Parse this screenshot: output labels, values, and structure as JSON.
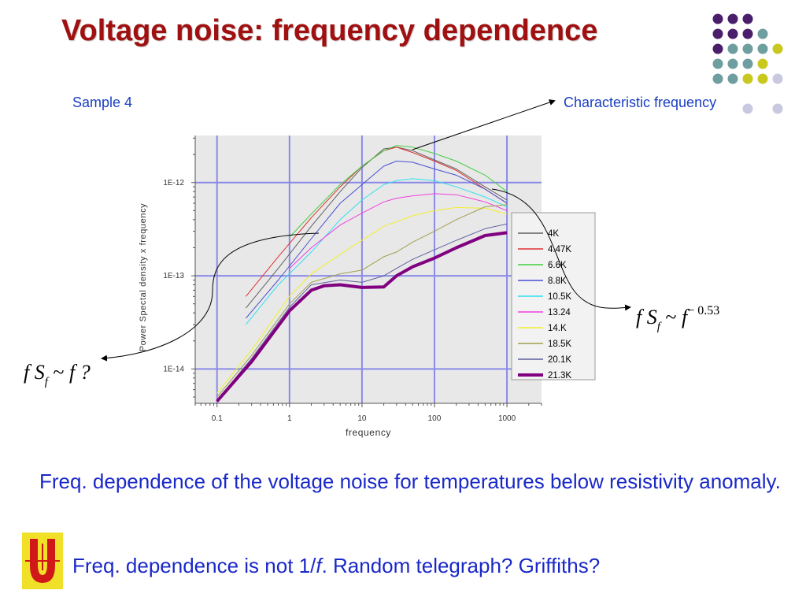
{
  "slide": {
    "title": "Voltage noise: frequency dependence",
    "sample_label": "Sample 4",
    "char_freq_label": "Characteristic frequency",
    "formula_left": {
      "f": "f",
      "S": "S",
      "sub": "f",
      "tilde": "~",
      "rhs": "f",
      "q": "?"
    },
    "formula_right": {
      "f": "f",
      "S": "S",
      "sub": "f",
      "tilde": "~",
      "rhs": "f",
      "exp": "− 0.53"
    },
    "paragraph1": "Freq. dependence of the voltage noise for temperatures below resistivity anomaly.",
    "paragraph2_pre": "Freq. dependence is not 1/",
    "paragraph2_f": "f",
    "paragraph2_post": ". Random telegraph? Griffiths?"
  },
  "colors": {
    "title": "#a01010",
    "text_blue": "#1a28c8",
    "dot_purple": "#4a1e6a",
    "dot_teal": "#6e9ea0",
    "dot_yellow": "#c8c81e",
    "dot_lavender": "#c8c8e0",
    "logo_red": "#d01818",
    "logo_yellow": "#f0e028"
  },
  "chart_data": {
    "type": "line",
    "xscale": "log",
    "yscale": "log",
    "xlabel": "frequency",
    "ylabel": "Power Spectal density x frequency",
    "xlim": [
      0.05,
      3000
    ],
    "ylim": [
      5e-15,
      3.2e-12
    ],
    "xticks": [
      0.1,
      1,
      10,
      100,
      1000
    ],
    "xtick_labels": [
      "0.1",
      "1",
      "10",
      "100",
      "1000"
    ],
    "yticks": [
      1e-14,
      1e-13,
      1e-12
    ],
    "ytick_labels": [
      "1E-14",
      "1E-13",
      "1E-12"
    ],
    "grid": true,
    "legend_position": "right",
    "series": [
      {
        "name": "4K",
        "color": "#606060",
        "x": [
          0.25,
          0.7,
          2,
          5,
          10,
          20,
          30,
          50,
          100,
          200,
          500,
          1000
        ],
        "y": [
          4.5e-14,
          1.2e-13,
          3.4e-13,
          8e-13,
          1.45e-12,
          2.3e-12,
          2.4e-12,
          2.2e-12,
          1.75e-12,
          1.4e-12,
          9e-13,
          6.5e-13
        ]
      },
      {
        "name": "4.47K",
        "color": "#e03030",
        "x": [
          0.25,
          0.7,
          2,
          5,
          10,
          20,
          30,
          50,
          100,
          200,
          500,
          1000
        ],
        "y": [
          6e-14,
          1.6e-13,
          4.2e-13,
          9e-13,
          1.5e-12,
          2.2e-12,
          2.4e-12,
          2.1e-12,
          1.7e-12,
          1.35e-12,
          8.5e-13,
          6e-13
        ]
      },
      {
        "name": "6.6K",
        "color": "#40d040",
        "x": [
          1,
          2,
          5,
          10,
          20,
          30,
          50,
          100,
          200,
          500,
          1000
        ],
        "y": [
          2.6e-13,
          4.6e-13,
          9.5e-13,
          1.5e-12,
          2.2e-12,
          2.5e-12,
          2.4e-12,
          2.05e-12,
          1.7e-12,
          1.2e-12,
          8e-13
        ]
      },
      {
        "name": "8.8K",
        "color": "#4850d0",
        "x": [
          0.25,
          0.7,
          2,
          5,
          10,
          20,
          30,
          50,
          100,
          200,
          500,
          1000
        ],
        "y": [
          3.5e-14,
          9e-14,
          2.5e-13,
          6e-13,
          9.5e-13,
          1.5e-12,
          1.7e-12,
          1.65e-12,
          1.4e-12,
          1.2e-12,
          8.5e-13,
          6e-13
        ]
      },
      {
        "name": "10.5K",
        "color": "#30e0f0",
        "x": [
          0.25,
          0.7,
          2,
          5,
          10,
          20,
          30,
          50,
          100,
          200,
          500,
          1000
        ],
        "y": [
          3e-14,
          8e-14,
          1.8e-13,
          4e-13,
          6.5e-13,
          9.5e-13,
          1.05e-12,
          1.1e-12,
          1.05e-12,
          9e-13,
          7e-13,
          5.5e-13
        ]
      },
      {
        "name": "13.24",
        "color": "#f040e0",
        "x": [
          1,
          2,
          5,
          10,
          20,
          30,
          50,
          100,
          200,
          500,
          1000
        ],
        "y": [
          1.2e-13,
          2e-13,
          3.5e-13,
          4.7e-13,
          6.2e-13,
          6.8e-13,
          7.2e-13,
          7.6e-13,
          7.4e-13,
          6.2e-13,
          5e-13
        ]
      },
      {
        "name": "14.K",
        "color": "#f0f030",
        "x": [
          0.1,
          0.3,
          1,
          2,
          5,
          10,
          20,
          30,
          50,
          100,
          200,
          500,
          1000
        ],
        "y": [
          5.5e-15,
          1.6e-14,
          6e-14,
          1.05e-13,
          1.7e-13,
          2.4e-13,
          3.4e-13,
          3.8e-13,
          4.4e-13,
          5e-13,
          5.4e-13,
          5.3e-13,
          4.6e-13
        ]
      },
      {
        "name": "18.5K",
        "color": "#a0a050",
        "x": [
          0.1,
          0.3,
          1,
          2,
          5,
          10,
          20,
          30,
          50,
          100,
          200,
          500,
          1000
        ],
        "y": [
          5e-15,
          1.4e-14,
          5e-14,
          8.5e-14,
          1.05e-13,
          1.15e-13,
          1.6e-13,
          1.8e-13,
          2.3e-13,
          3e-13,
          4e-13,
          5.5e-13,
          5.8e-13
        ]
      },
      {
        "name": "20.1K",
        "color": "#6060a0",
        "x": [
          0.1,
          0.3,
          1,
          2,
          5,
          10,
          20,
          30,
          50,
          100,
          200,
          500,
          1000
        ],
        "y": [
          4.6e-15,
          1.3e-14,
          4.6e-14,
          8e-14,
          9e-14,
          8.5e-14,
          1e-13,
          1.2e-13,
          1.5e-13,
          1.9e-13,
          2.4e-13,
          3.2e-13,
          3.6e-13
        ]
      },
      {
        "name": "21.3K",
        "color": "#800080",
        "bold": true,
        "x": [
          0.1,
          0.3,
          1,
          2,
          3,
          5,
          10,
          20,
          30,
          50,
          100,
          200,
          500,
          1000
        ],
        "y": [
          4.5e-15,
          1.2e-14,
          4.2e-14,
          7e-14,
          7.8e-14,
          8e-14,
          7.5e-14,
          7.6e-14,
          1e-13,
          1.25e-13,
          1.55e-13,
          2e-13,
          2.7e-13,
          2.9e-13
        ]
      }
    ]
  }
}
